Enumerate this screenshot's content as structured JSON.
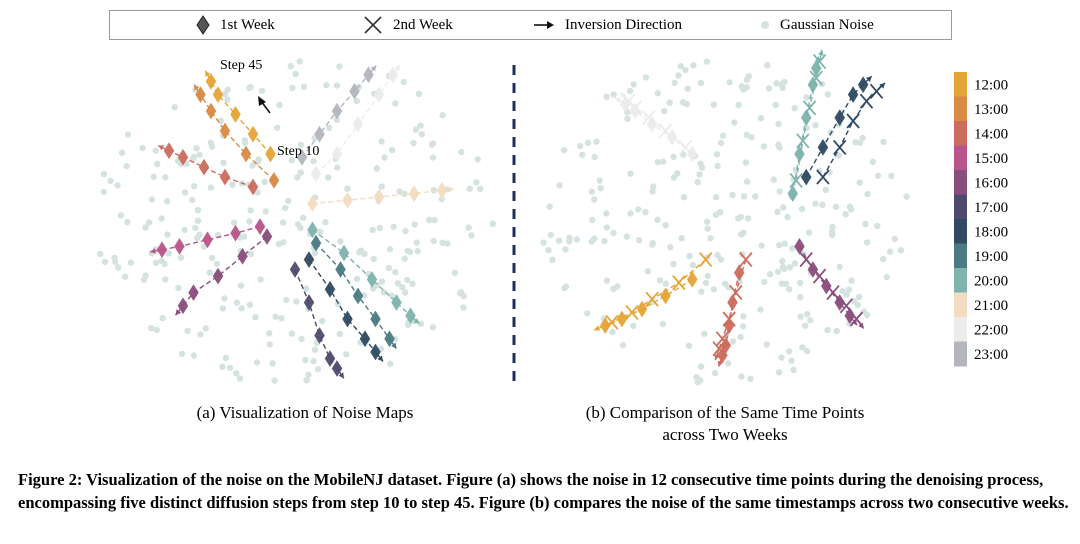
{
  "legend": {
    "items": [
      {
        "label": "1st  Week",
        "marker": "diamond"
      },
      {
        "label": "2nd Week",
        "marker": "x"
      },
      {
        "label": "Inversion Direction",
        "marker": "arrow"
      },
      {
        "label": "Gaussian Noise",
        "marker": "dot"
      }
    ]
  },
  "annotations": {
    "step45": "Step 45",
    "step10": "Step 10"
  },
  "colorbar": {
    "labels": [
      "12:00",
      "13:00",
      "14:00",
      "15:00",
      "16:00",
      "17:00",
      "18:00",
      "19:00",
      "20:00",
      "21:00",
      "22:00",
      "23:00"
    ],
    "colors": [
      "#e6a435",
      "#d98a45",
      "#cd6c5c",
      "#b9558a",
      "#8a4e7d",
      "#4e4a6e",
      "#2f4a62",
      "#4a7b82",
      "#7fb3ae",
      "#f3dcc0",
      "#ececea",
      "#b3b6bf"
    ]
  },
  "noise_color": "#d5e3e0",
  "subcaptions": {
    "a": "(a) Visualization of Noise Maps",
    "b_line1": "(b) Comparison of the Same Time Points",
    "b_line2": "across Two Weeks"
  },
  "caption": "Figure 2: Visualization of the noise on the MobileNJ dataset. Figure (a) shows the noise in 12 consecutive time points during the denoising process, encompassing five distinct diffusion steps from step 10 to step 45. Figure (b) compares the noise of the same timestamps across two consecutive weeks.",
  "chart_data": [
    {
      "type": "scatter",
      "title": "(a) Visualization of Noise Maps",
      "description_series": "Each time point is a trajectory of 5 diamond markers (steps 10..45) on a 2-D noise map; arrow indicates inversion direction. Coordinates in arbitrary embedding units (0-100).",
      "xlim": [
        0,
        100
      ],
      "ylim": [
        0,
        100
      ],
      "series": [
        {
          "name": "12:00",
          "points": [
            [
              43,
              70
            ],
            [
              38,
              76
            ],
            [
              33,
              82
            ],
            [
              28,
              88
            ],
            [
              26,
              92
            ]
          ]
        },
        {
          "name": "13:00",
          "points": [
            [
              44,
              62
            ],
            [
              36,
              70
            ],
            [
              30,
              77
            ],
            [
              26,
              83
            ],
            [
              23,
              88
            ]
          ]
        },
        {
          "name": "14:00",
          "points": [
            [
              38,
              60
            ],
            [
              30,
              63
            ],
            [
              24,
              66
            ],
            [
              18,
              69
            ],
            [
              14,
              71
            ]
          ]
        },
        {
          "name": "15:00",
          "points": [
            [
              40,
              48
            ],
            [
              33,
              46
            ],
            [
              25,
              44
            ],
            [
              17,
              42
            ],
            [
              12,
              41
            ]
          ]
        },
        {
          "name": "16:00",
          "points": [
            [
              42,
              45
            ],
            [
              35,
              39
            ],
            [
              28,
              33
            ],
            [
              21,
              28
            ],
            [
              18,
              24
            ]
          ]
        },
        {
          "name": "17:00",
          "points": [
            [
              50,
              35
            ],
            [
              54,
              25
            ],
            [
              57,
              15
            ],
            [
              60,
              8
            ],
            [
              62,
              5
            ]
          ]
        },
        {
          "name": "18:00",
          "points": [
            [
              54,
              38
            ],
            [
              60,
              29
            ],
            [
              65,
              20
            ],
            [
              70,
              14
            ],
            [
              73,
              10
            ]
          ]
        },
        {
          "name": "19:00",
          "points": [
            [
              56,
              43
            ],
            [
              63,
              35
            ],
            [
              68,
              27
            ],
            [
              73,
              20
            ],
            [
              77,
              14
            ]
          ]
        },
        {
          "name": "20:00",
          "points": [
            [
              55,
              47
            ],
            [
              64,
              40
            ],
            [
              72,
              32
            ],
            [
              79,
              25
            ],
            [
              83,
              21
            ]
          ]
        },
        {
          "name": "21:00",
          "points": [
            [
              55,
              55
            ],
            [
              65,
              56
            ],
            [
              74,
              57
            ],
            [
              84,
              58
            ],
            [
              92,
              59
            ]
          ]
        },
        {
          "name": "22:00",
          "points": [
            [
              56,
              64
            ],
            [
              62,
              70
            ],
            [
              68,
              79
            ],
            [
              74,
              88
            ],
            [
              78,
              94
            ]
          ]
        },
        {
          "name": "23:00",
          "points": [
            [
              52,
              69
            ],
            [
              57,
              76
            ],
            [
              62,
              83
            ],
            [
              67,
              89
            ],
            [
              71,
              94
            ]
          ]
        }
      ]
    },
    {
      "type": "scatter",
      "title": "(b) Comparison of the Same Time Points across Two Weeks",
      "xlim": [
        0,
        100
      ],
      "ylim": [
        0,
        100
      ],
      "series": [
        {
          "name": "12:00",
          "week": "1st Week",
          "points": [
            [
              38,
              32
            ],
            [
              30,
              27
            ],
            [
              23,
              23
            ],
            [
              17,
              20
            ],
            [
              12,
              18
            ]
          ]
        },
        {
          "name": "12:00",
          "week": "2nd Week",
          "points": [
            [
              42,
              38
            ],
            [
              34,
              31
            ],
            [
              26,
              26
            ],
            [
              20,
              22
            ],
            [
              14,
              19
            ]
          ]
        },
        {
          "name": "14:00",
          "week": "1st Week",
          "points": [
            [
              52,
              34
            ],
            [
              50,
              25
            ],
            [
              49,
              18
            ],
            [
              48,
              12
            ],
            [
              47,
              9
            ]
          ]
        },
        {
          "name": "14:00",
          "week": "2nd Week",
          "points": [
            [
              54,
              38
            ],
            [
              51,
              28
            ],
            [
              49,
              20
            ],
            [
              47,
              14
            ],
            [
              46,
              11
            ]
          ]
        },
        {
          "name": "16:00",
          "week": "1st Week",
          "points": [
            [
              70,
              42
            ],
            [
              74,
              35
            ],
            [
              78,
              30
            ],
            [
              82,
              25
            ],
            [
              85,
              21
            ]
          ]
        },
        {
          "name": "16:00",
          "week": "2nd Week",
          "points": [
            [
              72,
              38
            ],
            [
              76,
              33
            ],
            [
              80,
              28
            ],
            [
              84,
              24
            ],
            [
              87,
              20
            ]
          ]
        },
        {
          "name": "18:00",
          "week": "1st Week",
          "points": [
            [
              72,
              63
            ],
            [
              77,
              72
            ],
            [
              82,
              81
            ],
            [
              86,
              88
            ],
            [
              89,
              91
            ]
          ]
        },
        {
          "name": "18:00",
          "week": "2nd Week",
          "points": [
            [
              77,
              63
            ],
            [
              82,
              72
            ],
            [
              86,
              80
            ],
            [
              90,
              86
            ],
            [
              93,
              89
            ]
          ]
        },
        {
          "name": "20:00",
          "week": "1st Week",
          "points": [
            [
              68,
              58
            ],
            [
              70,
              70
            ],
            [
              72,
              81
            ],
            [
              74,
              91
            ],
            [
              75,
              96
            ]
          ]
        },
        {
          "name": "20:00",
          "week": "2nd Week",
          "points": [
            [
              69,
              62
            ],
            [
              71,
              74
            ],
            [
              73,
              84
            ],
            [
              75,
              93
            ],
            [
              76,
              98
            ]
          ]
        },
        {
          "name": "22:00",
          "week": "1st Week",
          "points": [
            [
              38,
              70
            ],
            [
              32,
              75
            ],
            [
              26,
              79
            ],
            [
              21,
              83
            ],
            [
              18,
              85
            ]
          ]
        },
        {
          "name": "22:00",
          "week": "2nd Week",
          "points": [
            [
              36,
              72
            ],
            [
              30,
              77
            ],
            [
              25,
              81
            ],
            [
              21,
              84
            ],
            [
              19,
              86
            ]
          ]
        }
      ]
    }
  ]
}
